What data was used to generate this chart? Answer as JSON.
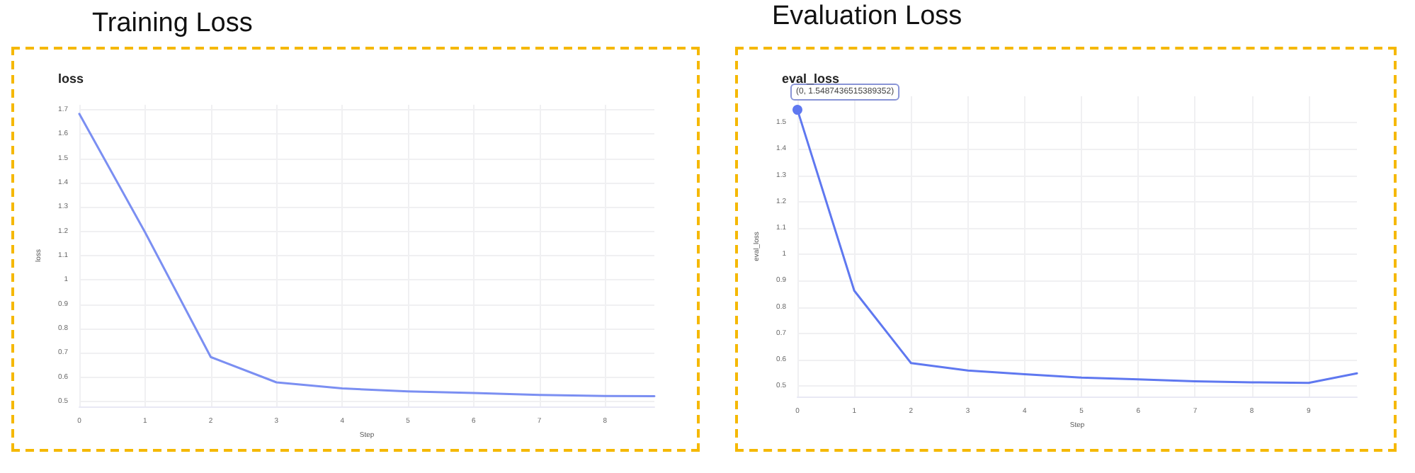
{
  "chart_data": [
    {
      "type": "line",
      "title": "Training Loss",
      "subtitle": "loss",
      "xlabel": "Step",
      "ylabel": "loss",
      "x": [
        0,
        1,
        2,
        3,
        4,
        5,
        6,
        7,
        8,
        8.75
      ],
      "series": [
        {
          "color": "#7b8ff2",
          "values": [
            1.683,
            1.196,
            0.683,
            0.579,
            0.554,
            0.542,
            0.535,
            0.527,
            0.523,
            0.522
          ]
        }
      ],
      "xlim": [
        0,
        8.75
      ],
      "xticks": [
        0,
        1,
        2,
        3,
        4,
        5,
        6,
        7,
        8
      ],
      "ylim": [
        0.48,
        1.72
      ],
      "yticks": [
        0.5,
        0.6,
        0.7,
        0.8,
        0.9,
        1,
        1.1,
        1.2,
        1.3,
        1.4,
        1.5,
        1.6,
        1.7
      ],
      "grid": true,
      "marker": "none",
      "line_style": "solid"
    },
    {
      "type": "line",
      "title": "Evaluation Loss",
      "subtitle": "eval_loss",
      "xlabel": "Step",
      "ylabel": "eval_loss",
      "x": [
        0,
        1,
        2,
        3,
        4,
        5,
        6,
        7,
        8,
        9,
        9.85
      ],
      "series": [
        {
          "color": "#5f78f0",
          "values": [
            1.5487,
            0.862,
            0.587,
            0.559,
            0.545,
            0.532,
            0.525,
            0.518,
            0.514,
            0.512,
            0.548
          ]
        }
      ],
      "xlim": [
        0,
        9.85
      ],
      "xticks": [
        0,
        1,
        2,
        3,
        4,
        5,
        6,
        7,
        8,
        9
      ],
      "ylim": [
        0.46,
        1.6
      ],
      "yticks": [
        0.5,
        0.6,
        0.7,
        0.8,
        0.9,
        1,
        1.1,
        1.2,
        1.3,
        1.4,
        1.5
      ],
      "annotations": [
        {
          "text": "(0, 1.5487436515389352)",
          "x": 0,
          "y": 1.5487
        }
      ],
      "grid": true,
      "marker": "none",
      "line_style": "solid"
    }
  ]
}
